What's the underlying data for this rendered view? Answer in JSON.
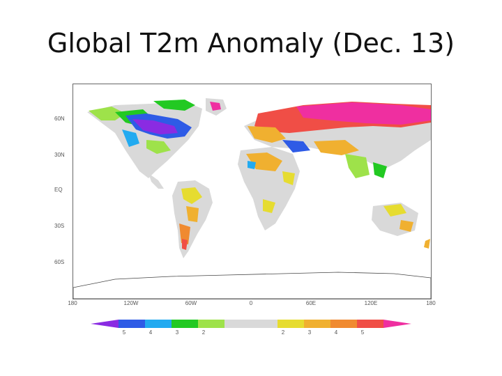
{
  "title": "Global T2m Anomaly (Dec. 13)",
  "map": {
    "lat_labels": [
      "60N",
      "30N",
      "EQ",
      "30S",
      "60S"
    ],
    "lon_labels": [
      "180",
      "120W",
      "60W",
      "0",
      "60E",
      "120E",
      "180"
    ]
  },
  "colorbar": {
    "colors": [
      "#8a2be2",
      "#2e5be6",
      "#22aaf0",
      "#22c922",
      "#9ee24a",
      "#d9d9d9",
      "#d9d9d9",
      "#e6dc30",
      "#f0b030",
      "#f08a30",
      "#f04e46",
      "#ef2fa0"
    ],
    "tick_labels": [
      "5",
      "4",
      "3",
      "2",
      "",
      "",
      "2",
      "3",
      "4",
      "5"
    ]
  },
  "legend_colors": {
    "land_neutral": "#dadada",
    "ocean": "#ffffff"
  }
}
